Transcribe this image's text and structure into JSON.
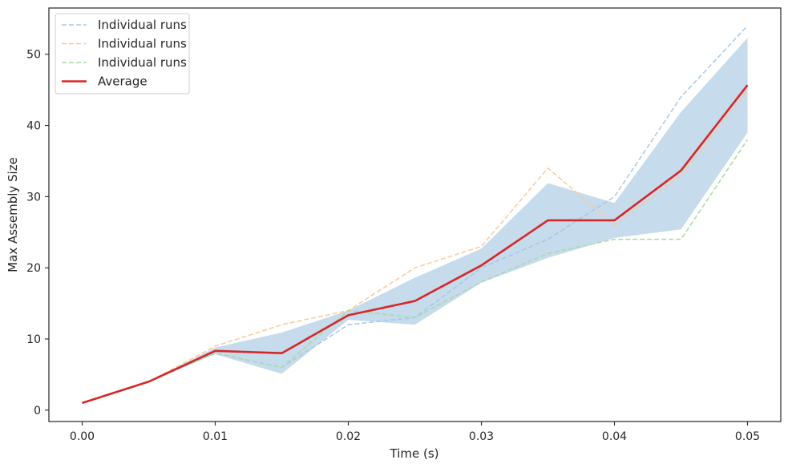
{
  "chart_data": {
    "type": "line",
    "xlabel": "Time (s)",
    "ylabel": "Max Assembly Size",
    "xlim": [
      -0.0025,
      0.0525
    ],
    "ylim": [
      -1.6,
      56.5
    ],
    "x_ticks": [
      0.0,
      0.01,
      0.02,
      0.03,
      0.04,
      0.05
    ],
    "x_tick_labels": [
      "0.00",
      "0.01",
      "0.02",
      "0.03",
      "0.04",
      "0.05"
    ],
    "y_ticks": [
      0,
      10,
      20,
      30,
      40,
      50
    ],
    "y_tick_labels": [
      "0",
      "10",
      "20",
      "30",
      "40",
      "50"
    ],
    "grid": false,
    "legend_position": "top-left",
    "x": [
      0.0,
      0.005,
      0.01,
      0.015,
      0.02,
      0.025,
      0.03,
      0.035,
      0.04,
      0.045,
      0.05
    ],
    "series": [
      {
        "name": "Individual runs",
        "style": "dashed",
        "color": "#a6c8e6",
        "values": [
          1,
          4,
          8,
          6,
          12,
          13,
          20,
          24,
          30,
          44,
          54
        ]
      },
      {
        "name": "Individual runs",
        "style": "dashed",
        "color": "#fdc89b",
        "values": [
          1,
          4,
          9,
          12,
          14,
          20,
          23,
          34,
          26,
          33,
          45
        ]
      },
      {
        "name": "Individual runs",
        "style": "dashed",
        "color": "#a9dba4",
        "values": [
          1,
          4,
          8,
          6,
          14,
          13,
          18,
          22,
          24,
          24,
          38
        ]
      },
      {
        "name": "Average",
        "style": "solid",
        "color": "#d62728",
        "values": [
          1,
          4,
          8.33,
          8,
          13.33,
          15.33,
          20.33,
          26.67,
          26.67,
          33.67,
          45.67
        ]
      }
    ],
    "band": {
      "color": "#c6dbec",
      "lower": [
        1,
        4,
        7.86,
        5.1,
        12.7,
        12.0,
        17.9,
        21.4,
        24.2,
        25.4,
        39.0
      ],
      "upper": [
        1,
        4,
        8.8,
        10.9,
        14.0,
        18.6,
        22.7,
        31.9,
        29.1,
        41.9,
        52.3
      ]
    }
  }
}
